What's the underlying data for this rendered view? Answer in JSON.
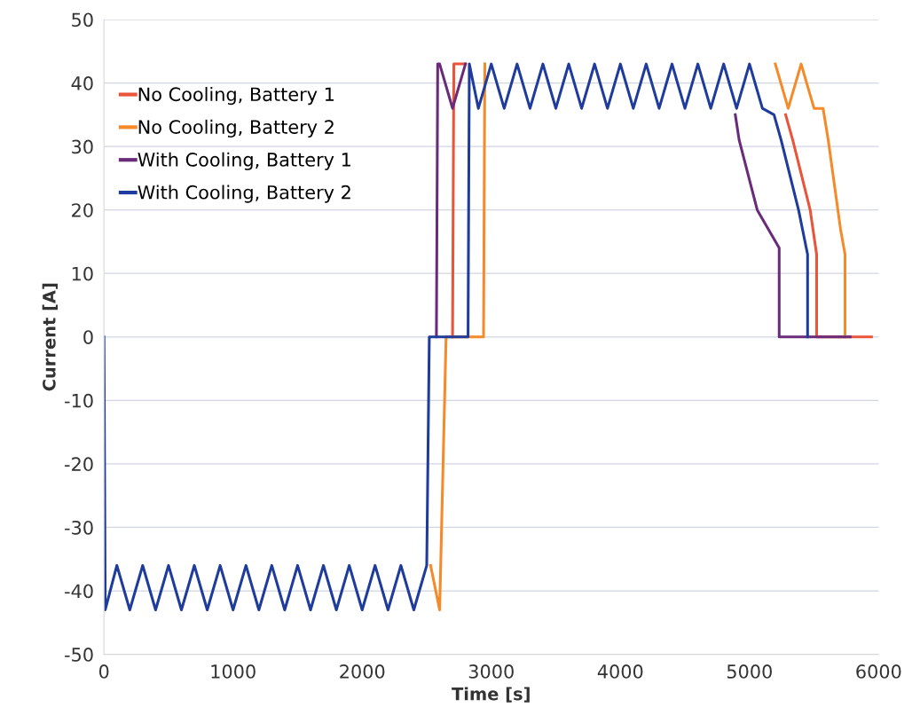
{
  "chart_data": {
    "type": "line",
    "xlabel": "Time [s]",
    "ylabel": "Current [A]",
    "xlim": [
      0,
      6000
    ],
    "xticks": [
      0,
      1000,
      2000,
      3000,
      4000,
      5000,
      6000
    ],
    "ylim": [
      -50,
      50
    ],
    "yticks": [
      -50,
      -40,
      -30,
      -20,
      -10,
      0,
      10,
      20,
      30,
      40,
      50
    ],
    "grid": "y",
    "legend": "top left",
    "marker": "none",
    "line_style": "solid",
    "series": [
      {
        "name": "No Cooling, Battery 1",
        "color": "#e8553a",
        "x": [
          2700,
          2710,
          2800,
          2850,
          5280,
          5335,
          5470,
          5520,
          5520,
          5945
        ],
        "values": [
          0,
          43,
          43,
          null,
          35,
          31,
          20,
          13,
          0,
          0
        ]
      },
      {
        "name": "No Cooling, Battery 2",
        "color": "#f58a2a",
        "x": [
          2530,
          2600,
          2650,
          2940,
          2950,
          3500,
          5200,
          5300,
          5400,
          5500,
          5570,
          5610,
          5705,
          5740,
          5740
        ],
        "values": [
          -36,
          -43,
          0,
          0,
          43,
          null,
          43,
          36,
          43,
          36,
          36,
          31,
          17,
          13,
          0
        ]
      },
      {
        "name": "With Cooling, Battery 1",
        "color": "#6a2c7a",
        "x": [
          2575,
          2585,
          2600,
          2700,
          2800,
          3500,
          4890,
          4920,
          5060,
          5230,
          5230,
          5780
        ],
        "values": [
          0,
          43,
          43,
          36,
          43,
          null,
          35,
          31,
          20,
          14,
          0,
          0
        ]
      },
      {
        "name": "With Cooling, Battery 2",
        "color": "#1f3c9c",
        "x": [
          0,
          10,
          100,
          200,
          300,
          400,
          500,
          600,
          700,
          800,
          900,
          1000,
          1100,
          1200,
          1300,
          1400,
          1500,
          1600,
          1700,
          1800,
          1900,
          2000,
          2100,
          2200,
          2300,
          2400,
          2500,
          2520,
          2820,
          2830,
          2900,
          3000,
          3100,
          3200,
          3300,
          3400,
          3500,
          3600,
          3700,
          3800,
          3900,
          4000,
          4100,
          4200,
          4300,
          4400,
          4500,
          4600,
          4700,
          4800,
          4900,
          5000,
          5100,
          5190,
          5245,
          5380,
          5450,
          5450
        ],
        "values": [
          0,
          -43,
          -36,
          -43,
          -36,
          -43,
          -36,
          -43,
          -36,
          -43,
          -36,
          -43,
          -36,
          -43,
          -36,
          -43,
          -36,
          -43,
          -36,
          -43,
          -36,
          -43,
          -36,
          -43,
          -36,
          -43,
          -36,
          0,
          0,
          43,
          36,
          43,
          36,
          43,
          36,
          43,
          36,
          43,
          36,
          43,
          36,
          43,
          36,
          43,
          36,
          43,
          36,
          43,
          36,
          43,
          36,
          43,
          36,
          35,
          31,
          20,
          13,
          0
        ]
      }
    ]
  }
}
